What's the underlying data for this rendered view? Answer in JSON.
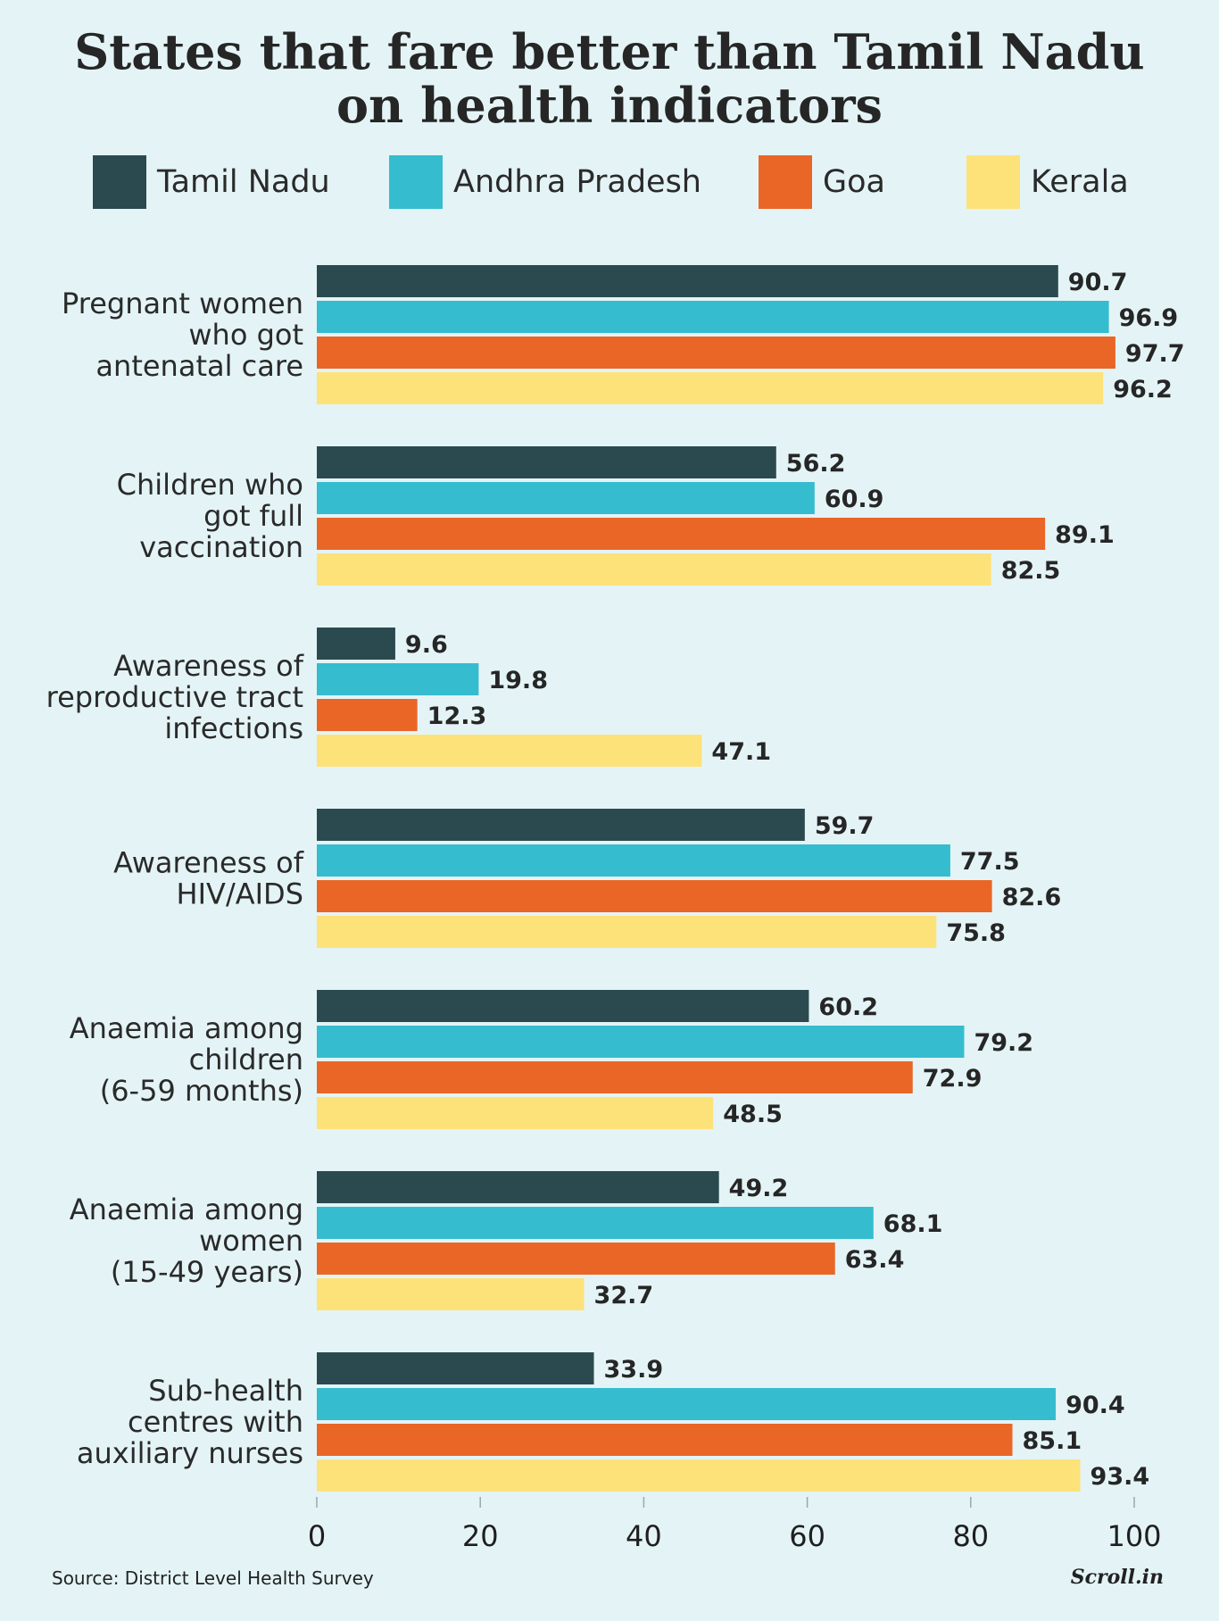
{
  "title": {
    "line1": "States that fare better than Tamil Nadu",
    "line2": "on health indicators"
  },
  "legend": [
    {
      "label": "Tamil Nadu",
      "color": "#2b4a50"
    },
    {
      "label": "Andhra Pradesh",
      "color": "#35bccf"
    },
    {
      "label": "Goa",
      "color": "#ea6627"
    },
    {
      "label": "Kerala",
      "color": "#fde27a"
    }
  ],
  "chart_data": {
    "type": "bar",
    "orientation": "horizontal",
    "title": "States that fare better than Tamil Nadu on health indicators",
    "categories": [
      [
        "Pregnant women",
        "who got",
        "antenatal care"
      ],
      [
        "Children who",
        "got full",
        "vaccination"
      ],
      [
        "Awareness of",
        "reproductive tract",
        "infections"
      ],
      [
        "Awareness of",
        "HIV/AIDS"
      ],
      [
        "Anaemia among",
        "children",
        "(6-59 months)"
      ],
      [
        "Anaemia among",
        "women",
        "(15-49 years)"
      ],
      [
        "Sub-health",
        "centres with",
        "auxiliary nurses"
      ]
    ],
    "series": [
      {
        "name": "Tamil Nadu",
        "color": "#2b4a50",
        "values": [
          90.7,
          56.2,
          9.6,
          59.7,
          60.2,
          49.2,
          33.9
        ]
      },
      {
        "name": "Andhra Pradesh",
        "color": "#35bccf",
        "values": [
          96.9,
          60.9,
          19.8,
          77.5,
          79.2,
          68.1,
          90.4
        ]
      },
      {
        "name": "Goa",
        "color": "#ea6627",
        "values": [
          97.7,
          89.1,
          12.3,
          82.6,
          72.9,
          63.4,
          85.1
        ]
      },
      {
        "name": "Kerala",
        "color": "#fde27a",
        "values": [
          96.2,
          82.5,
          47.1,
          75.8,
          48.5,
          32.7,
          93.4
        ]
      }
    ],
    "value_labels": [
      [
        "90.7",
        "96.9",
        "97.7",
        "96.2"
      ],
      [
        "56.2",
        "60.9",
        "89.1",
        "82.5"
      ],
      [
        "9.6",
        "19.8",
        "12.3",
        "47.1"
      ],
      [
        "59.7",
        "77.5",
        "82.6",
        "75.8"
      ],
      [
        "60.2",
        "79.2",
        "72.9",
        "48.5"
      ],
      [
        "49.2",
        "68.1",
        "63.4",
        "32.7"
      ],
      [
        "33.9",
        "90.4",
        "85.1",
        "93.4"
      ]
    ],
    "xlim": [
      0,
      100
    ],
    "xticks": [
      "0",
      "20",
      "40",
      "60",
      "80",
      "100"
    ],
    "xlabel": "",
    "ylabel": "",
    "legend_position": "top",
    "grid": false
  },
  "footer": {
    "source": "Source: District Level Health Survey",
    "brand": "Scroll.in"
  }
}
